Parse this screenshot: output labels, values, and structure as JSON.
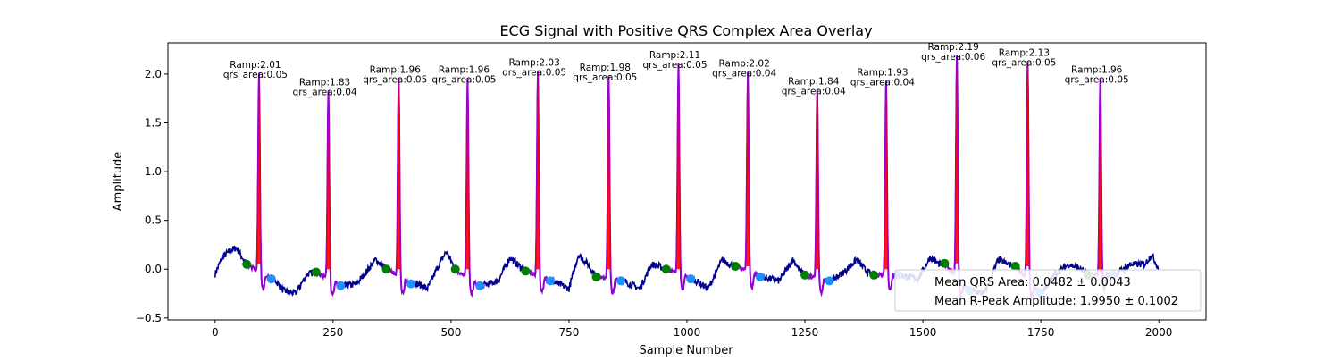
{
  "chart_data": {
    "type": "line",
    "title": "ECG Signal with Positive QRS Complex Area Overlay",
    "xlabel": "Sample Number",
    "ylabel": "Amplitude",
    "xlim": [
      -100,
      2100
    ],
    "ylim": [
      -0.52,
      2.32
    ],
    "x_ticks": [
      0,
      250,
      500,
      750,
      1000,
      1250,
      1500,
      1750,
      2000
    ],
    "y_ticks": [
      -0.5,
      0.0,
      0.5,
      1.0,
      1.5,
      2.0
    ],
    "x_tick_labels": [
      "0",
      "250",
      "500",
      "750",
      "1000",
      "1250",
      "1500",
      "1750",
      "2000"
    ],
    "y_tick_labels": [
      "−0.5",
      "0.0",
      "0.5",
      "1.0",
      "1.5",
      "2.0"
    ],
    "grid": false,
    "colors": {
      "signal": "#00008b",
      "qrs_segment": "#9400d3",
      "qrs_area_fill": "#ff0000",
      "onset_marker": "#008000",
      "offset_marker": "#1e90ff"
    },
    "beats": [
      {
        "r_peak_x": 93,
        "r_amp": 2.01,
        "qrs_area": 0.05,
        "label_line1": "Ramp:2.01",
        "label_line2": "qrs_area:0.05",
        "onset_x": 67,
        "onset_y": 0.05,
        "offset_x": 119,
        "offset_y": -0.1
      },
      {
        "r_peak_x": 240,
        "r_amp": 1.83,
        "qrs_area": 0.04,
        "label_line1": "Ramp:1.83",
        "label_line2": "qrs_area:0.04",
        "onset_x": 214,
        "onset_y": -0.03,
        "offset_x": 266,
        "offset_y": -0.17
      },
      {
        "r_peak_x": 389,
        "r_amp": 1.96,
        "qrs_area": 0.05,
        "label_line1": "Ramp:1.96",
        "label_line2": "qrs_area:0.05",
        "onset_x": 363,
        "onset_y": 0.0,
        "offset_x": 415,
        "offset_y": -0.15
      },
      {
        "r_peak_x": 535,
        "r_amp": 1.96,
        "qrs_area": 0.05,
        "label_line1": "Ramp:1.96",
        "label_line2": "qrs_area:0.05",
        "onset_x": 509,
        "onset_y": 0.0,
        "offset_x": 561,
        "offset_y": -0.17
      },
      {
        "r_peak_x": 684,
        "r_amp": 2.03,
        "qrs_area": 0.05,
        "label_line1": "Ramp:2.03",
        "label_line2": "qrs_area:0.05",
        "onset_x": 658,
        "onset_y": -0.02,
        "offset_x": 710,
        "offset_y": -0.12
      },
      {
        "r_peak_x": 834,
        "r_amp": 1.98,
        "qrs_area": 0.05,
        "label_line1": "Ramp:1.98",
        "label_line2": "qrs_area:0.05",
        "onset_x": 808,
        "onset_y": -0.08,
        "offset_x": 860,
        "offset_y": -0.12
      },
      {
        "r_peak_x": 982,
        "r_amp": 2.11,
        "qrs_area": 0.05,
        "label_line1": "Ramp:2.11",
        "label_line2": "qrs_area:0.05",
        "onset_x": 956,
        "onset_y": 0.0,
        "offset_x": 1008,
        "offset_y": -0.1
      },
      {
        "r_peak_x": 1129,
        "r_amp": 2.02,
        "qrs_area": 0.04,
        "label_line1": "Ramp:2.02",
        "label_line2": "qrs_area:0.04",
        "onset_x": 1103,
        "onset_y": 0.03,
        "offset_x": 1155,
        "offset_y": -0.08
      },
      {
        "r_peak_x": 1276,
        "r_amp": 1.84,
        "qrs_area": 0.04,
        "label_line1": "Ramp:1.84",
        "label_line2": "qrs_area:0.04",
        "onset_x": 1250,
        "onset_y": -0.06,
        "offset_x": 1302,
        "offset_y": -0.12
      },
      {
        "r_peak_x": 1422,
        "r_amp": 1.93,
        "qrs_area": 0.04,
        "label_line1": "Ramp:1.93",
        "label_line2": "qrs_area:0.04",
        "onset_x": 1396,
        "onset_y": -0.06,
        "offset_x": 1448,
        "offset_y": -0.06
      },
      {
        "r_peak_x": 1572,
        "r_amp": 2.19,
        "qrs_area": 0.06,
        "label_line1": "Ramp:2.19",
        "label_line2": "qrs_area:0.06",
        "onset_x": 1546,
        "onset_y": 0.06,
        "offset_x": 1598,
        "offset_y": -0.22
      },
      {
        "r_peak_x": 1722,
        "r_amp": 2.13,
        "qrs_area": 0.05,
        "label_line1": "Ramp:2.13",
        "label_line2": "qrs_area:0.05",
        "onset_x": 1696,
        "onset_y": 0.03,
        "offset_x": 1748,
        "offset_y": -0.24
      },
      {
        "r_peak_x": 1876,
        "r_amp": 1.96,
        "qrs_area": 0.05,
        "label_line1": "Ramp:1.96",
        "label_line2": "qrs_area:0.05",
        "onset_x": 1850,
        "onset_y": -0.06,
        "offset_x": 1902,
        "offset_y": -0.06
      }
    ],
    "legend": {
      "placement": "lower-right",
      "entries": [
        "Mean QRS Area: 0.0482 ± 0.0043",
        "Mean R-Peak Amplitude: 1.9950 ± 0.1002"
      ]
    },
    "signal": {
      "n_samples": 2000,
      "baseline_anchors": [
        [
          0,
          -0.05
        ],
        [
          15,
          0.12
        ],
        [
          35,
          0.2
        ],
        [
          45,
          0.22
        ],
        [
          60,
          0.1
        ],
        [
          67,
          0.05
        ],
        [
          125,
          -0.1
        ],
        [
          145,
          -0.22
        ],
        [
          170,
          -0.25
        ],
        [
          195,
          -0.05
        ],
        [
          214,
          -0.03
        ],
        [
          270,
          -0.18
        ],
        [
          300,
          -0.15
        ],
        [
          320,
          -0.03
        ],
        [
          340,
          0.1
        ],
        [
          363,
          0.0
        ],
        [
          420,
          -0.13
        ],
        [
          450,
          -0.2
        ],
        [
          475,
          0.05
        ],
        [
          490,
          0.18
        ],
        [
          509,
          0.0
        ],
        [
          565,
          -0.17
        ],
        [
          600,
          -0.12
        ],
        [
          625,
          0.12
        ],
        [
          640,
          0.05
        ],
        [
          658,
          -0.02
        ],
        [
          715,
          -0.12
        ],
        [
          750,
          -0.2
        ],
        [
          770,
          0.15
        ],
        [
          790,
          0.05
        ],
        [
          808,
          -0.08
        ],
        [
          865,
          -0.12
        ],
        [
          900,
          -0.2
        ],
        [
          925,
          0.05
        ],
        [
          940,
          0.03
        ],
        [
          956,
          0.0
        ],
        [
          1012,
          -0.1
        ],
        [
          1045,
          -0.2
        ],
        [
          1075,
          0.1
        ],
        [
          1090,
          0.05
        ],
        [
          1103,
          0.03
        ],
        [
          1160,
          -0.08
        ],
        [
          1195,
          -0.12
        ],
        [
          1225,
          0.1
        ],
        [
          1240,
          -0.02
        ],
        [
          1250,
          -0.06
        ],
        [
          1305,
          -0.12
        ],
        [
          1335,
          -0.02
        ],
        [
          1360,
          0.1
        ],
        [
          1380,
          -0.02
        ],
        [
          1396,
          -0.06
        ],
        [
          1452,
          -0.06
        ],
        [
          1490,
          -0.1
        ],
        [
          1515,
          0.12
        ],
        [
          1535,
          0.05
        ],
        [
          1546,
          0.06
        ],
        [
          1602,
          -0.22
        ],
        [
          1630,
          -0.25
        ],
        [
          1660,
          0.1
        ],
        [
          1680,
          0.05
        ],
        [
          1696,
          0.03
        ],
        [
          1752,
          -0.24
        ],
        [
          1780,
          -0.05
        ],
        [
          1810,
          0.05
        ],
        [
          1835,
          0.0
        ],
        [
          1850,
          -0.06
        ],
        [
          1905,
          -0.06
        ],
        [
          1940,
          0.05
        ],
        [
          1970,
          0.05
        ],
        [
          1985,
          0.15
        ],
        [
          2000,
          0.0
        ]
      ]
    }
  }
}
